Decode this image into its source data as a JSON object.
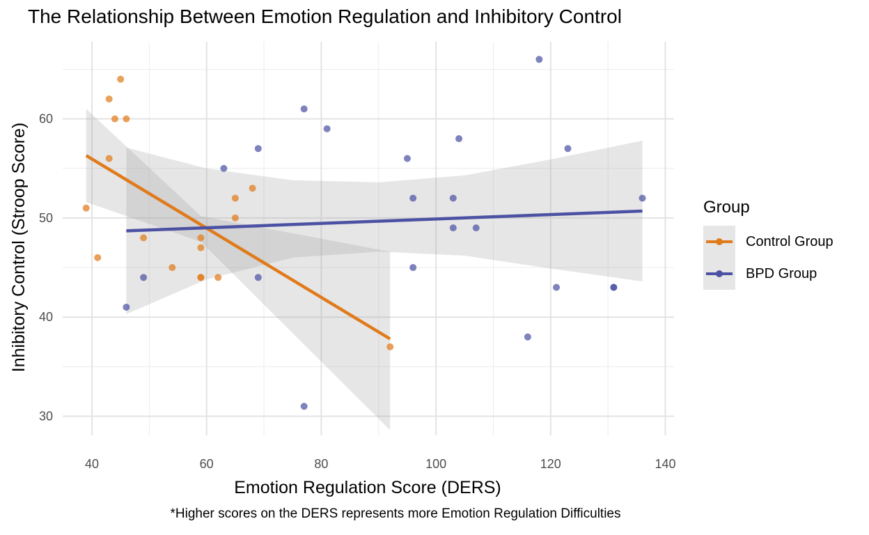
{
  "chart_data": {
    "type": "scatter",
    "title": "The Relationship Between Emotion Regulation and Inhibitory Control",
    "xlabel": "Emotion Regulation Score (DERS)",
    "ylabel": "Inhibitory Control (Stroop Score)",
    "caption": "*Higher scores on the DERS represents more Emotion Regulation Difficulties",
    "xlim": [
      35,
      140
    ],
    "ylim": [
      27,
      67
    ],
    "x_ticks": [
      40,
      60,
      80,
      100,
      120,
      140
    ],
    "y_ticks": [
      30,
      40,
      50,
      60
    ],
    "grid": true,
    "legend": {
      "title": "Group",
      "position": "right"
    },
    "series": [
      {
        "name": "Control Group",
        "color": "#e07b1c",
        "points": [
          [
            39,
            51
          ],
          [
            41,
            46
          ],
          [
            43,
            62
          ],
          [
            43,
            56
          ],
          [
            44,
            60
          ],
          [
            45,
            64
          ],
          [
            46,
            60
          ],
          [
            49,
            48
          ],
          [
            54,
            45
          ],
          [
            59,
            48
          ],
          [
            59,
            47
          ],
          [
            59,
            44
          ],
          [
            59,
            44
          ],
          [
            62,
            44
          ],
          [
            65,
            52
          ],
          [
            65,
            50
          ],
          [
            68,
            53
          ],
          [
            92,
            37
          ]
        ],
        "fit_line": {
          "x": [
            39,
            92
          ],
          "y": [
            56.3,
            37.8
          ]
        },
        "ci_band": {
          "x": [
            39,
            59,
            92
          ],
          "lower": [
            51.6,
            47.6,
            28.6
          ],
          "upper": [
            61.0,
            50.2,
            46.6
          ]
        }
      },
      {
        "name": "BPD Group",
        "color": "#4c52a3",
        "points": [
          [
            46,
            41
          ],
          [
            49,
            44
          ],
          [
            63,
            55
          ],
          [
            69,
            57
          ],
          [
            69,
            44
          ],
          [
            77,
            61
          ],
          [
            77,
            31
          ],
          [
            81,
            59
          ],
          [
            95,
            56
          ],
          [
            96,
            52
          ],
          [
            96,
            45
          ],
          [
            103,
            52
          ],
          [
            103,
            49
          ],
          [
            104,
            58
          ],
          [
            107,
            49
          ],
          [
            116,
            38
          ],
          [
            118,
            66
          ],
          [
            121,
            43
          ],
          [
            123,
            57
          ],
          [
            131,
            43
          ],
          [
            131,
            43
          ],
          [
            136,
            52
          ]
        ],
        "fit_line": {
          "x": [
            46,
            136
          ],
          "y": [
            48.7,
            50.7
          ]
        },
        "ci_band": {
          "x": [
            46,
            60,
            75,
            90,
            105,
            120,
            136
          ],
          "lower": [
            40.3,
            43.8,
            46.0,
            46.6,
            46.2,
            44.9,
            43.6
          ],
          "upper": [
            57.1,
            55.0,
            53.8,
            53.6,
            54.3,
            55.9,
            57.8
          ]
        }
      }
    ]
  }
}
